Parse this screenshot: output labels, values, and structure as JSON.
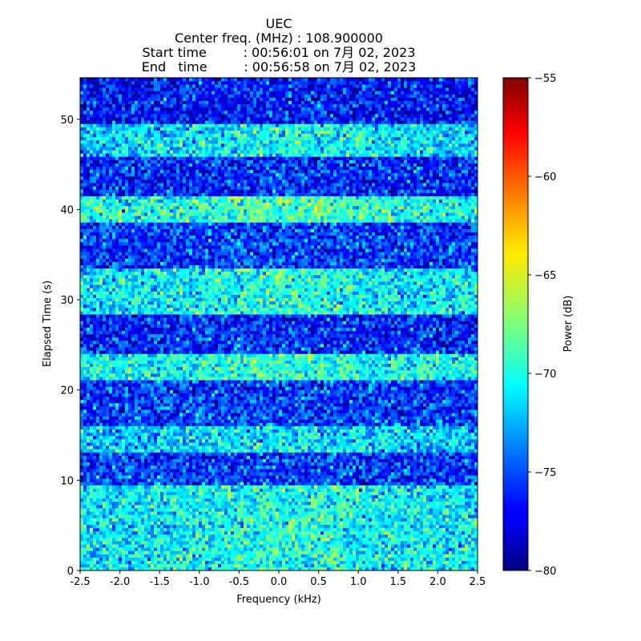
{
  "title": {
    "line1": "UEC",
    "line2": "Center freq. (MHz) : 108.900000",
    "line3": "Start time         : 00:56:01 on 7月 02, 2023",
    "line4": "End   time         : 00:56:58 on 7月 02, 2023"
  },
  "chart_data": {
    "type": "heatmap",
    "xlabel": "Frequency (kHz)",
    "ylabel": "Elapsed Time (s)",
    "xlim": [
      -2.5,
      2.5
    ],
    "ylim": [
      0,
      54.6
    ],
    "x_ticks": [
      -2.5,
      -2.0,
      -1.5,
      -1.0,
      -0.5,
      0.0,
      0.5,
      1.0,
      1.5,
      2.0,
      2.5
    ],
    "x_tick_labels": [
      "-2.5",
      "-2.0",
      "-1.5",
      "-1.0",
      "-0.5",
      "0.0",
      "0.5",
      "1.0",
      "1.5",
      "2.0",
      "2.5"
    ],
    "y_ticks": [
      0,
      10,
      20,
      30,
      40,
      50
    ],
    "y_tick_labels": [
      "0",
      "10",
      "20",
      "30",
      "40",
      "50"
    ],
    "colormap": "jet",
    "colorbar": {
      "label": "Power (dB)",
      "range": [
        -80,
        -55
      ],
      "ticks": [
        -80,
        -75,
        -70,
        -65,
        -60,
        -55
      ],
      "tick_labels": [
        "−80",
        "−75",
        "−70",
        "−65",
        "−60",
        "−55"
      ]
    },
    "bands": [
      {
        "t_start": 0,
        "t_end": 9.5,
        "mean_power_db": -71.0
      },
      {
        "t_start": 9.5,
        "t_end": 13.0,
        "mean_power_db": -75.5
      },
      {
        "t_start": 13.0,
        "t_end": 16.0,
        "mean_power_db": -72.0
      },
      {
        "t_start": 16.0,
        "t_end": 21.0,
        "mean_power_db": -75.5
      },
      {
        "t_start": 21.0,
        "t_end": 24.0,
        "mean_power_db": -70.5
      },
      {
        "t_start": 24.0,
        "t_end": 28.5,
        "mean_power_db": -76.0
      },
      {
        "t_start": 28.5,
        "t_end": 33.5,
        "mean_power_db": -71.0
      },
      {
        "t_start": 33.5,
        "t_end": 38.5,
        "mean_power_db": -75.5
      },
      {
        "t_start": 38.5,
        "t_end": 41.5,
        "mean_power_db": -70.0
      },
      {
        "t_start": 41.5,
        "t_end": 46.0,
        "mean_power_db": -76.0
      },
      {
        "t_start": 46.0,
        "t_end": 49.5,
        "mean_power_db": -71.5
      },
      {
        "t_start": 49.5,
        "t_end": 54.6,
        "mean_power_db": -76.5
      }
    ]
  }
}
